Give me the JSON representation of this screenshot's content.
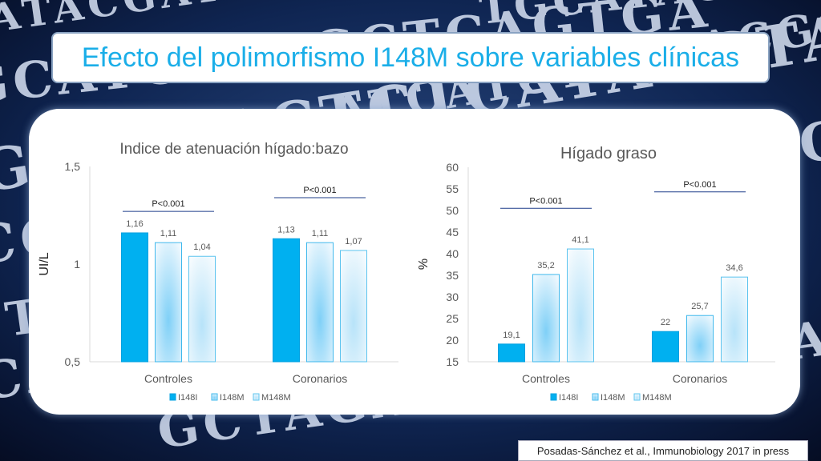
{
  "slide_title": "Efecto del polimorfismo I148M sobre variables clínicas",
  "citation": "Posadas-Sánchez et al., Immunobiology 2017 in press",
  "background_letters": [
    "ATACGATCAC",
    "GCATCGTAGCTCAGTGA",
    "GATCTACTCTCATACGTAG",
    "CGATCACTGACTACGGATC",
    "TACGATCTAGCTCCAG",
    "CATCGATCGTACTACG",
    "GCTAGATCGATCAGCA",
    "ATCATCTACTACGCTAG",
    "TGCATAGCTACATG"
  ],
  "colors": {
    "title": "#1aaee8",
    "series_solid": "#00b0f0",
    "series_light": "#bfe6fb",
    "series_lighter": "#e6f5fd",
    "background": "#0b1a3a",
    "letters": "#d8e2f4"
  },
  "chart_data": [
    {
      "type": "bar",
      "title": "Indice de atenuación hígado:bazo",
      "ylabel": "UI/L",
      "ylim": [
        0.5,
        1.5
      ],
      "yticks": [
        "0,5",
        "1",
        "1,5"
      ],
      "ytick_values": [
        0.5,
        1.0,
        1.5
      ],
      "categories": [
        "Controles",
        "Coronarios"
      ],
      "series": [
        {
          "name": "I148I",
          "values": [
            1.16,
            1.13
          ],
          "labels": [
            "1,16",
            "1,13"
          ]
        },
        {
          "name": "I148M",
          "values": [
            1.11,
            1.11
          ],
          "labels": [
            "1,11",
            "1,11"
          ]
        },
        {
          "name": "M148M",
          "values": [
            1.04,
            1.07
          ],
          "labels": [
            "1,04",
            "1,07"
          ]
        }
      ],
      "annotations": [
        {
          "text": "P<0.001",
          "group": "Controles",
          "level": 1.27
        },
        {
          "text": "P<0.001",
          "group": "Coronarios",
          "level": 1.34
        }
      ],
      "legend": "bottom",
      "grid": false
    },
    {
      "type": "bar",
      "title": "Hígado graso",
      "ylabel": "%",
      "ylim": [
        15,
        60
      ],
      "yticks": [
        "15",
        "20",
        "25",
        "30",
        "35",
        "40",
        "45",
        "50",
        "55",
        "60"
      ],
      "ytick_values": [
        15,
        20,
        25,
        30,
        35,
        40,
        45,
        50,
        55,
        60
      ],
      "categories": [
        "Controles",
        "Coronarios"
      ],
      "series": [
        {
          "name": "I148I",
          "values": [
            19.1,
            22
          ],
          "labels": [
            "19,1",
            "22"
          ]
        },
        {
          "name": "I148M",
          "values": [
            35.2,
            25.7
          ],
          "labels": [
            "35,2",
            "25,7"
          ]
        },
        {
          "name": "M148M",
          "values": [
            41.1,
            34.6
          ],
          "labels": [
            "41,1",
            "34,6"
          ]
        }
      ],
      "annotations": [
        {
          "text": "P<0.001",
          "group": "Controles",
          "level": 50.5
        },
        {
          "text": "P<0.001",
          "group": "Coronarios",
          "level": 54.3
        }
      ],
      "legend": "bottom",
      "grid": false
    }
  ]
}
